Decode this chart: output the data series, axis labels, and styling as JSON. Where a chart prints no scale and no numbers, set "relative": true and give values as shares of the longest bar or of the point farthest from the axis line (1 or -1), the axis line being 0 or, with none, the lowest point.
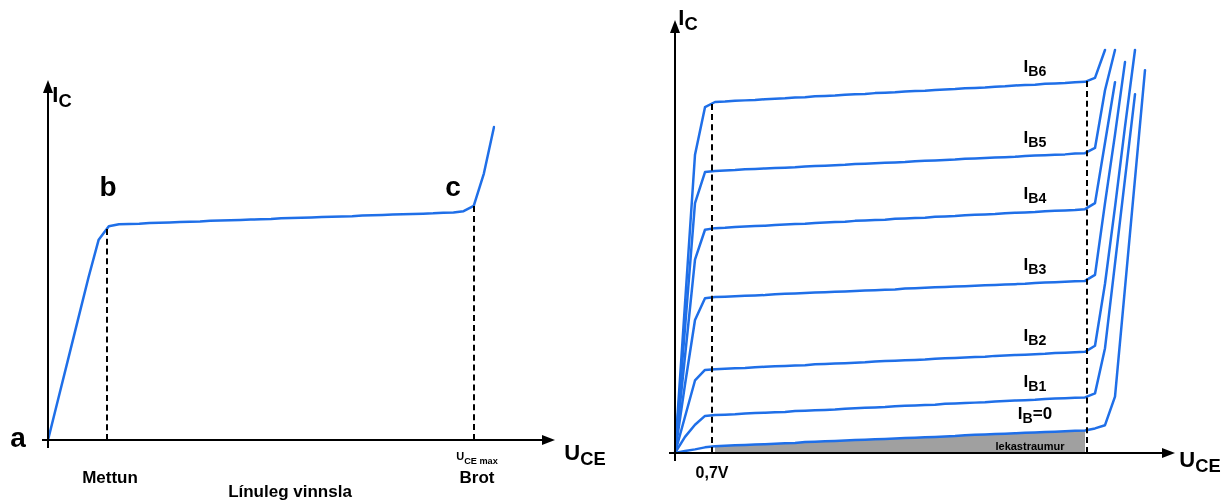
{
  "chart_data": [
    {
      "type": "line",
      "relative": true,
      "xlabel": "U$_{CE}$",
      "ylabel": "I$_{C}$",
      "legend": false,
      "marker": "none",
      "annotations": [
        "a",
        "b",
        "c",
        "Mettun",
        "U$_{CE max}$",
        "Brot",
        "Línuleg vinnsla"
      ],
      "categories": [
        null,
        null,
        null,
        null,
        null,
        null,
        null,
        null,
        null,
        null,
        null,
        null,
        null,
        null,
        null,
        null,
        null,
        null,
        null,
        null,
        null,
        null,
        null,
        null,
        null,
        null,
        null,
        null,
        null,
        null,
        null,
        null,
        null,
        null,
        null,
        null,
        null,
        null,
        null,
        null,
        null,
        null,
        null,
        null,
        null
      ],
      "series": [
        {
          "color": "#1f6fe8",
          "values": [
            0,
            0.13,
            0.26,
            0.39,
            0.52,
            0.64,
            0.683,
            0.689,
            0.69,
            0.691,
            0.693,
            0.694,
            0.695,
            0.696,
            0.697,
            0.698,
            0.7,
            0.701,
            0.702,
            0.703,
            0.704,
            0.705,
            0.706,
            0.708,
            0.709,
            0.71,
            0.711,
            0.712,
            0.713,
            0.714,
            0.715,
            0.717,
            0.718,
            0.719,
            0.72,
            0.721,
            0.722,
            0.723,
            0.724,
            0.726,
            0.727,
            0.731,
            0.748,
            0.851,
            1.0
          ]
        }
      ]
    },
    {
      "type": "line",
      "relative": true,
      "xlabel": "U$_{CE}$",
      "ylabel": "I$_{C}$",
      "legend": false,
      "marker": "none",
      "annotations": [
        "0,7V",
        "lekastraumur"
      ],
      "categories": [
        null,
        null,
        null,
        null,
        null,
        null,
        null,
        null,
        null,
        null,
        null,
        null,
        null,
        null,
        null,
        null,
        null,
        null,
        null,
        null,
        null,
        null,
        null,
        null,
        null,
        null,
        null,
        null,
        null,
        null,
        null,
        null,
        null,
        null,
        null,
        null,
        null,
        null,
        null,
        null,
        null,
        null,
        null,
        null,
        null,
        null,
        null,
        null,
        null,
        null,
        null
      ],
      "series": [
        {
          "type": "area",
          "color": "#a0a0a0",
          "values": [
            null,
            null,
            null,
            null,
            0.017,
            0.018,
            0.019,
            0.02,
            0.021,
            0.022,
            0.023,
            0.024,
            0.025,
            0.027,
            0.028,
            0.029,
            0.03,
            0.031,
            0.032,
            0.033,
            0.034,
            0.035,
            0.036,
            0.037,
            0.038,
            0.039,
            0.04,
            0.041,
            0.042,
            0.044,
            0.045,
            0.046,
            0.047,
            0.048,
            0.049,
            0.05,
            0.051,
            0.052,
            0.053,
            0.054,
            0.055,
            0.056,
            null,
            null,
            null,
            null,
            null,
            null,
            null,
            null,
            null
          ]
        },
        {
          "name": "I$_{B6}$",
          "color": "#1f6fe8",
          "values": [
            0,
            0.37,
            0.74,
            0.858,
            0.871,
            0.872,
            0.874,
            0.875,
            0.876,
            0.878,
            0.879,
            0.88,
            0.882,
            0.883,
            0.885,
            0.886,
            0.887,
            0.889,
            0.89,
            0.891,
            0.893,
            0.894,
            0.895,
            0.897,
            0.898,
            0.899,
            0.901,
            0.902,
            0.903,
            0.905,
            0.906,
            0.907,
            0.909,
            0.91,
            0.912,
            0.913,
            0.914,
            0.916,
            0.917,
            0.918,
            0.92,
            0.921,
            0.931,
            1.0,
            null,
            null,
            null,
            null,
            null,
            null,
            null
          ]
        },
        {
          "name": "I$_{B5}$",
          "color": "#1f6fe8",
          "values": [
            0,
            0.31,
            0.62,
            0.697,
            0.7,
            0.701,
            0.702,
            0.704,
            0.705,
            0.706,
            0.707,
            0.708,
            0.709,
            0.711,
            0.712,
            0.713,
            0.714,
            0.715,
            0.717,
            0.718,
            0.719,
            0.72,
            0.721,
            0.722,
            0.724,
            0.725,
            0.726,
            0.727,
            0.728,
            0.73,
            0.731,
            0.732,
            0.733,
            0.734,
            0.735,
            0.737,
            0.738,
            0.739,
            0.74,
            0.741,
            0.743,
            0.744,
            0.757,
            0.9,
            1.0,
            null,
            null,
            null,
            null,
            null,
            null
          ]
        },
        {
          "name": "I$_{B4}$",
          "color": "#1f6fe8",
          "values": [
            0,
            0.24,
            0.48,
            0.554,
            0.558,
            0.559,
            0.561,
            0.562,
            0.563,
            0.564,
            0.566,
            0.567,
            0.568,
            0.569,
            0.571,
            0.572,
            0.573,
            0.574,
            0.576,
            0.577,
            0.578,
            0.579,
            0.581,
            0.582,
            0.583,
            0.584,
            0.586,
            0.587,
            0.588,
            0.59,
            0.591,
            0.592,
            0.593,
            0.595,
            0.596,
            0.597,
            0.598,
            0.6,
            0.601,
            0.602,
            0.603,
            0.605,
            0.62,
            0.77,
            0.92,
            null,
            null,
            null,
            null,
            null,
            null
          ]
        },
        {
          "name": "I$_{B3}$",
          "color": "#1f6fe8",
          "values": [
            0,
            0.17,
            0.33,
            0.384,
            0.387,
            0.388,
            0.389,
            0.39,
            0.391,
            0.392,
            0.394,
            0.395,
            0.396,
            0.397,
            0.398,
            0.399,
            0.4,
            0.401,
            0.402,
            0.403,
            0.404,
            0.405,
            0.406,
            0.408,
            0.409,
            0.41,
            0.411,
            0.412,
            0.413,
            0.414,
            0.415,
            0.416,
            0.417,
            0.418,
            0.419,
            0.42,
            0.422,
            0.423,
            0.424,
            0.425,
            0.426,
            0.427,
            0.442,
            0.62,
            0.79,
            0.97,
            null,
            null,
            null,
            null,
            null
          ]
        },
        {
          "name": "I$_{B2}$",
          "color": "#1f6fe8",
          "values": [
            0,
            0.09,
            0.18,
            0.206,
            0.208,
            0.209,
            0.21,
            0.211,
            0.213,
            0.214,
            0.215,
            0.216,
            0.217,
            0.218,
            0.22,
            0.221,
            0.222,
            0.223,
            0.224,
            0.225,
            0.227,
            0.228,
            0.229,
            0.23,
            0.231,
            0.232,
            0.234,
            0.235,
            0.236,
            0.237,
            0.238,
            0.239,
            0.241,
            0.242,
            0.243,
            0.244,
            0.245,
            0.246,
            0.248,
            0.249,
            0.25,
            0.251,
            0.266,
            0.42,
            0.61,
            0.81,
            1.0,
            null,
            null,
            null,
            null
          ]
        },
        {
          "name": "I$_{B1}$",
          "color": "#1f6fe8",
          "values": [
            0,
            0.04,
            0.07,
            0.092,
            0.094,
            0.095,
            0.096,
            0.098,
            0.099,
            0.1,
            0.101,
            0.102,
            0.104,
            0.105,
            0.106,
            0.107,
            0.108,
            0.11,
            0.111,
            0.112,
            0.113,
            0.114,
            0.116,
            0.117,
            0.118,
            0.119,
            0.12,
            0.122,
            0.123,
            0.124,
            0.125,
            0.126,
            0.128,
            0.129,
            0.13,
            0.131,
            0.132,
            0.134,
            0.135,
            0.136,
            0.137,
            0.138,
            0.148,
            0.26,
            0.47,
            0.68,
            0.89,
            null,
            null,
            null,
            null
          ]
        },
        {
          "name": "I$_{B}$=0",
          "color": "#1f6fe8",
          "values": [
            0,
            0.005,
            0.009,
            0.014,
            0.017,
            0.018,
            0.019,
            0.02,
            0.021,
            0.022,
            0.023,
            0.024,
            0.025,
            0.027,
            0.028,
            0.029,
            0.03,
            0.031,
            0.032,
            0.033,
            0.034,
            0.035,
            0.036,
            0.037,
            0.038,
            0.039,
            0.04,
            0.041,
            0.042,
            0.044,
            0.045,
            0.046,
            0.047,
            0.048,
            0.049,
            0.05,
            0.051,
            0.052,
            0.053,
            0.054,
            0.055,
            0.056,
            0.061,
            0.069,
            0.14,
            0.41,
            0.68,
            0.95,
            null,
            null,
            null
          ]
        }
      ]
    }
  ]
}
